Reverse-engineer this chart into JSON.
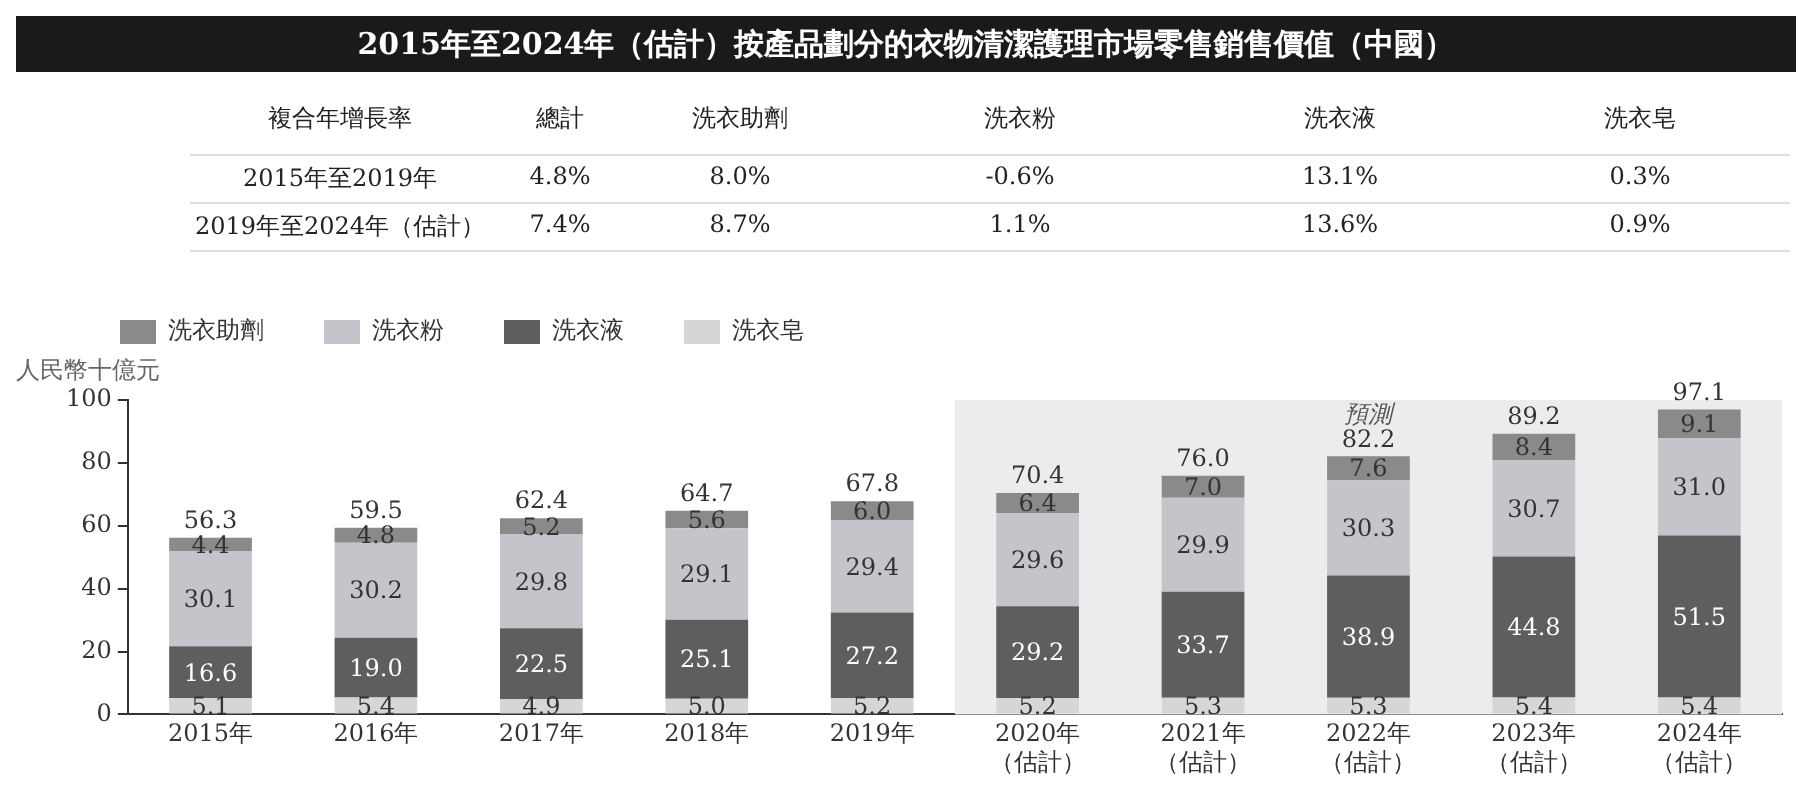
{
  "chart_data": {
    "type": "bar",
    "title": "2015年至2024年（估計）按產品劃分的衣物清潔護理市場零售銷售價值（中國）",
    "ylabel": "人民幣十億元",
    "categories": [
      "2015年",
      "2016年",
      "2017年",
      "2018年",
      "2019年",
      "2020年（估計）",
      "2021年（估計）",
      "2022年（估計）",
      "2023年（估計）",
      "2024年（估計）"
    ],
    "stacked": true,
    "series": [
      {
        "name": "洗衣皂",
        "color": "#d6d6d6",
        "values": [
          5.1,
          5.4,
          4.9,
          5.0,
          5.2,
          5.2,
          5.3,
          5.3,
          5.4,
          5.4
        ],
        "value_labels": [
          "5.1",
          "5.4",
          "4.9",
          "5.0",
          "5.2",
          "5.2",
          "5.3",
          "5.3",
          "5.4",
          "5.4"
        ]
      },
      {
        "name": "洗衣液",
        "color": "#5e5e5e",
        "values": [
          16.6,
          19.0,
          22.5,
          25.1,
          27.2,
          29.2,
          33.7,
          38.9,
          44.8,
          51.5
        ],
        "value_labels": [
          "16.6",
          "19.0",
          "22.5",
          "25.1",
          "27.2",
          "29.2",
          "33.7",
          "38.9",
          "44.8",
          "51.5"
        ]
      },
      {
        "name": "洗衣粉",
        "color": "#c4c5ca",
        "values": [
          30.1,
          30.2,
          29.8,
          29.1,
          29.4,
          29.6,
          29.9,
          30.3,
          30.7,
          31.0
        ],
        "value_labels": [
          "30.1",
          "30.2",
          "29.8",
          "29.1",
          "29.4",
          "29.6",
          "29.9",
          "30.3",
          "30.7",
          "31.0"
        ]
      },
      {
        "name": "洗衣助劑",
        "color": "#8a8a8a",
        "values": [
          4.4,
          4.8,
          5.2,
          5.6,
          6.0,
          6.4,
          7.0,
          7.6,
          8.4,
          9.1
        ],
        "value_labels": [
          "4.4",
          "4.8",
          "5.2",
          "5.6",
          "6.0",
          "6.4",
          "7.0",
          "7.6",
          "8.4",
          "9.1"
        ]
      }
    ],
    "totals": [
      "56.3",
      "59.5",
      "62.4",
      "64.7",
      "67.8",
      "70.4",
      "76.0",
      "82.2",
      "89.2",
      "97.1"
    ],
    "ylim": [
      0,
      100
    ],
    "yticks": [
      0,
      20,
      40,
      60,
      80,
      100
    ],
    "grid": false,
    "legend": "top left",
    "bands": [
      {
        "axis": "x",
        "from": "2020年（估計）",
        "to": "2024年（估計）",
        "label": "預測",
        "color": "#ececec"
      }
    ],
    "annotations": [
      "複合年增長率",
      "總計",
      "洗衣助劑",
      "洗衣粉",
      "洗衣液",
      "洗衣皂",
      "2015年至2019年",
      "4.8%",
      "8.0%",
      "-0.6%",
      "13.1%",
      "0.3%",
      "2019年至2024年（估計）",
      "7.4%",
      "8.7%",
      "1.1%",
      "13.6%",
      "0.9%"
    ]
  }
}
